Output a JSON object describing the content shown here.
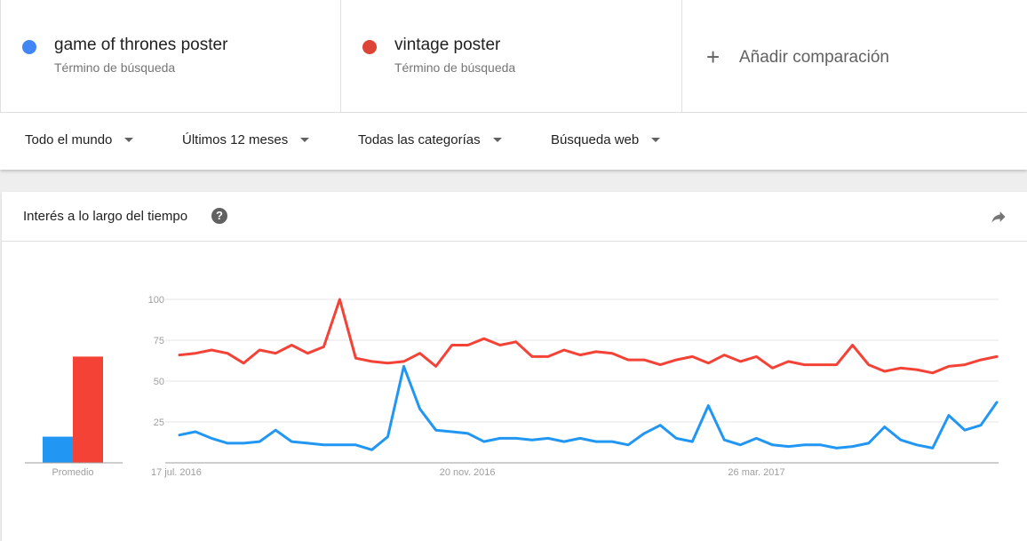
{
  "terms": [
    {
      "name": "game of thrones poster",
      "subtitle": "Término de búsqueda",
      "color": "#4285f4"
    },
    {
      "name": "vintage poster",
      "subtitle": "Término de búsqueda",
      "color": "#db4437"
    }
  ],
  "add_comparison": {
    "icon": "plus-icon",
    "label": "Añadir comparación"
  },
  "filters": {
    "region": "Todo el mundo",
    "time": "Últimos 12 meses",
    "category": "Todas las categorías",
    "search_type": "Búsqueda web"
  },
  "card": {
    "title": "Interés a lo largo del tiempo",
    "help_icon": "help-icon",
    "help_glyph": "?",
    "share_icon": "share-icon"
  },
  "chart_data": {
    "type": "line",
    "title": "",
    "xlabel": "",
    "ylabel": "",
    "ylim": [
      0,
      100
    ],
    "y_ticks": [
      25,
      50,
      75,
      100
    ],
    "x_tick_labels": [
      {
        "index": 0,
        "label": "17 jul. 2016"
      },
      {
        "index": 18,
        "label": "20 nov. 2016"
      },
      {
        "index": 36,
        "label": "26 mar. 2017"
      }
    ],
    "grid": true,
    "series": [
      {
        "name": "game of thrones poster",
        "color": "#2196f3",
        "values": [
          17,
          19,
          15,
          12,
          12,
          13,
          20,
          13,
          12,
          11,
          11,
          11,
          8,
          16,
          59,
          33,
          20,
          19,
          18,
          13,
          15,
          15,
          14,
          15,
          13,
          15,
          13,
          13,
          11,
          18,
          23,
          15,
          13,
          35,
          14,
          11,
          15,
          11,
          10,
          11,
          11,
          9,
          10,
          12,
          22,
          14,
          11,
          9,
          29,
          20,
          23,
          37
        ]
      },
      {
        "name": "vintage poster",
        "color": "#f44336",
        "values": [
          66,
          67,
          69,
          67,
          61,
          69,
          67,
          72,
          67,
          71,
          100,
          64,
          62,
          61,
          62,
          67,
          59,
          72,
          72,
          76,
          72,
          74,
          65,
          65,
          69,
          66,
          68,
          67,
          63,
          63,
          60,
          63,
          65,
          61,
          66,
          62,
          65,
          58,
          62,
          60,
          60,
          60,
          72,
          60,
          56,
          58,
          57,
          55,
          59,
          60,
          63,
          65
        ]
      }
    ],
    "average": {
      "label": "Promedio",
      "values": [
        {
          "name": "game of thrones poster",
          "value": 16,
          "color": "#2196f3"
        },
        {
          "name": "vintage poster",
          "value": 65,
          "color": "#f44336"
        }
      ]
    }
  }
}
